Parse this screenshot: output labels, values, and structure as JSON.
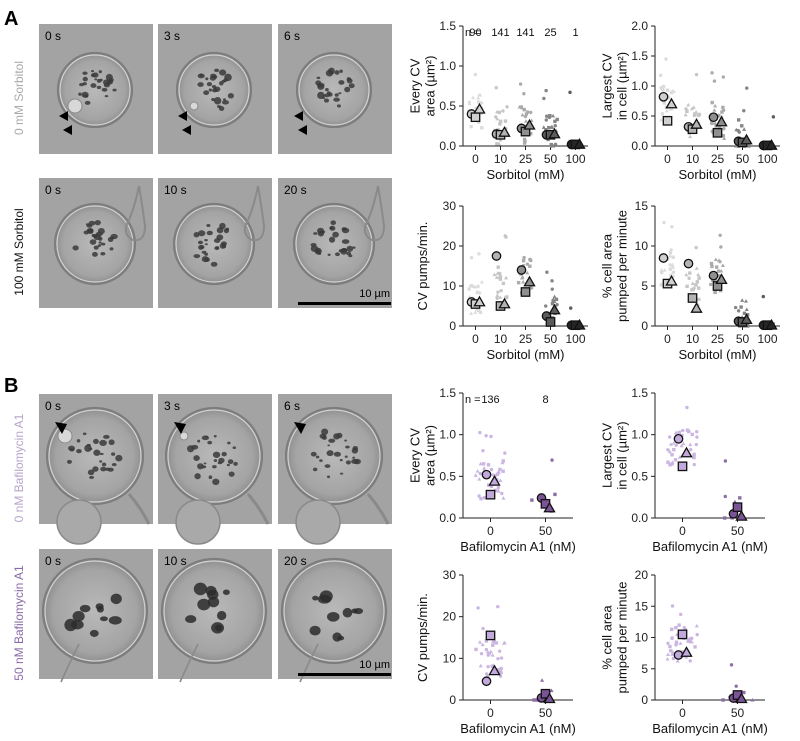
{
  "panel_labels": [
    "A",
    "B"
  ],
  "panelA": {
    "row_labels": [
      "0 mM Sorbitol",
      "100 mM Sorbitol"
    ],
    "row_colors": [
      "#a9a9a9",
      "#111111"
    ],
    "times_row1": [
      "0 s",
      "3 s",
      "6 s"
    ],
    "times_row2": [
      "0 s",
      "10 s",
      "20 s"
    ],
    "scalebar": "10 µm"
  },
  "panelB": {
    "row_labels": [
      "0 nM Bafilomycin A1",
      "50 nM Bafilomycin A1"
    ],
    "row_colors": [
      "#b8a3cc",
      "#8a6aa8"
    ],
    "times_row1": [
      "0 s",
      "3 s",
      "6 s"
    ],
    "times_row2": [
      "0 s",
      "10 s",
      "20 s"
    ],
    "scalebar": "10 µm"
  },
  "colors": {
    "sorbitol": [
      "#d0d0d0",
      "#b3b3b3",
      "#8f8f8f",
      "#5c5c5c",
      "#262626"
    ],
    "bafilomycin": [
      "#c2a9dc",
      "#7a5496"
    ]
  },
  "chart_data": [
    {
      "id": "A1",
      "type": "scatter",
      "ylabel": [
        "Every CV",
        "area (µm²)"
      ],
      "xlabel": "Sorbitol (mM)",
      "categories": [
        "0",
        "10",
        "25",
        "50",
        "100"
      ],
      "ylim": [
        0,
        1.5
      ],
      "yticks": [
        "0.0",
        "0.5",
        "1.0",
        "1.5"
      ],
      "n_label": "n =",
      "n_values": [
        "90",
        "141",
        "141",
        "25",
        "1"
      ],
      "replicate_means": [
        [
          0.4,
          0.36,
          0.46
        ],
        [
          0.15,
          0.14,
          0.17
        ],
        [
          0.22,
          0.18,
          0.26
        ],
        [
          0.14,
          0.14,
          0.15
        ],
        [
          0.02,
          0.02,
          0.02
        ]
      ]
    },
    {
      "id": "A2",
      "type": "scatter",
      "ylabel": [
        "Largest CV",
        "in cell (µm²)"
      ],
      "xlabel": "Sorbitol (mM)",
      "categories": [
        "0",
        "10",
        "25",
        "50",
        "100"
      ],
      "ylim": [
        0,
        2.0
      ],
      "yticks": [
        "0.0",
        "0.5",
        "1.0",
        "1.5",
        "2.0"
      ],
      "replicate_means": [
        [
          0.82,
          0.42,
          0.7
        ],
        [
          0.32,
          0.28,
          0.36
        ],
        [
          0.48,
          0.22,
          0.4
        ],
        [
          0.08,
          0.06,
          0.1
        ],
        [
          0.01,
          0.01,
          0.01
        ]
      ]
    },
    {
      "id": "A3",
      "type": "scatter",
      "ylabel": [
        "CV pumps/min."
      ],
      "xlabel": "Sorbitol (mM)",
      "categories": [
        "0",
        "10",
        "25",
        "50",
        "100"
      ],
      "ylim": [
        0,
        30
      ],
      "yticks": [
        "0",
        "10",
        "20",
        "30"
      ],
      "replicate_means": [
        [
          6.0,
          5.5,
          6.0
        ],
        [
          17.5,
          5.0,
          5.5
        ],
        [
          14.0,
          8.5,
          11.0
        ],
        [
          2.5,
          1.0,
          4.0
        ],
        [
          0.2,
          0.2,
          0.2
        ]
      ]
    },
    {
      "id": "A4",
      "type": "scatter",
      "ylabel": [
        "% cell area",
        "pumped per minute"
      ],
      "xlabel": "Sorbitol (mM)",
      "categories": [
        "0",
        "10",
        "25",
        "50",
        "100"
      ],
      "ylim": [
        0,
        15
      ],
      "yticks": [
        "0",
        "5",
        "10",
        "15"
      ],
      "replicate_means": [
        [
          8.5,
          5.3,
          5.6
        ],
        [
          7.8,
          3.5,
          2.2
        ],
        [
          6.3,
          5.0,
          5.8
        ],
        [
          0.6,
          0.5,
          0.8
        ],
        [
          0.1,
          0.1,
          0.1
        ]
      ]
    },
    {
      "id": "B1",
      "type": "scatter",
      "ylabel": [
        "Every CV",
        "area (µm²)"
      ],
      "xlabel": "Bafilomycin A1 (nM)",
      "categories": [
        "0",
        "50"
      ],
      "ylim": [
        0,
        1.5
      ],
      "yticks": [
        "0.0",
        "0.5",
        "1.0",
        "1.5"
      ],
      "n_label": "n =",
      "n_values": [
        "136",
        "8"
      ],
      "replicate_means": [
        [
          0.52,
          0.28,
          0.44
        ],
        [
          0.24,
          0.17,
          0.12
        ]
      ]
    },
    {
      "id": "B2",
      "type": "scatter",
      "ylabel": [
        "Largest CV",
        "in cell (µm²)"
      ],
      "xlabel": "Bafilomycin A1 (nM)",
      "categories": [
        "0",
        "50"
      ],
      "ylim": [
        0,
        1.5
      ],
      "yticks": [
        "0.0",
        "0.5",
        "1.0",
        "1.5"
      ],
      "replicate_means": [
        [
          0.95,
          0.62,
          0.78
        ],
        [
          0.05,
          0.13,
          0.02
        ]
      ]
    },
    {
      "id": "B3",
      "type": "scatter",
      "ylabel": [
        "CV pumps/min."
      ],
      "xlabel": "Bafilomycin A1 (nM)",
      "categories": [
        "0",
        "50"
      ],
      "ylim": [
        0,
        30
      ],
      "yticks": [
        "0",
        "10",
        "20",
        "30"
      ],
      "replicate_means": [
        [
          4.5,
          15.5,
          7.0
        ],
        [
          0.5,
          1.5,
          0.3
        ]
      ]
    },
    {
      "id": "B4",
      "type": "scatter",
      "ylabel": [
        "% cell area",
        "pumped per minute"
      ],
      "xlabel": "Bafilomycin A1 (nM)",
      "categories": [
        "0",
        "50"
      ],
      "ylim": [
        0,
        20
      ],
      "yticks": [
        "0",
        "5",
        "10",
        "15",
        "20"
      ],
      "replicate_means": [
        [
          7.2,
          10.5,
          7.6
        ],
        [
          0.3,
          0.8,
          0.2
        ]
      ]
    }
  ]
}
